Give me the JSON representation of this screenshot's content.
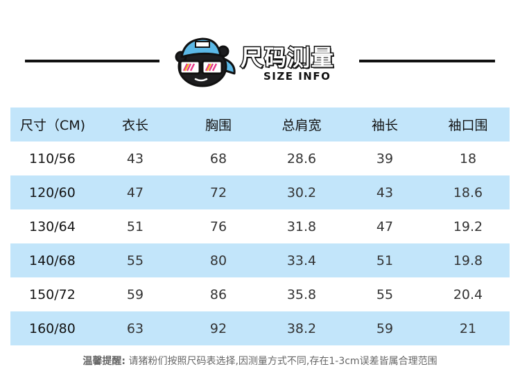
{
  "header": {
    "title_cn": "尺码测量",
    "title_en": "SIZE INFO",
    "mascot_icon": "cartoon-kid-cap-sunglasses-icon",
    "colors": {
      "rule": "#111111",
      "cap": "#5bb8e6",
      "row_blue": "#c2e5fa"
    }
  },
  "table": {
    "headers": [
      "尺寸（CM)",
      "衣长",
      "胸围",
      "总肩宽",
      "袖长",
      "袖口围"
    ],
    "rows": [
      [
        "110/56",
        "43",
        "68",
        "28.6",
        "39",
        "18"
      ],
      [
        "120/60",
        "47",
        "72",
        "30.2",
        "43",
        "18.6"
      ],
      [
        "130/64",
        "51",
        "76",
        "31.8",
        "47",
        "19.2"
      ],
      [
        "140/68",
        "55",
        "80",
        "33.4",
        "51",
        "19.8"
      ],
      [
        "150/72",
        "59",
        "86",
        "35.8",
        "55",
        "20.4"
      ],
      [
        "160/80",
        "63",
        "92",
        "38.2",
        "59",
        "21"
      ]
    ]
  },
  "note": {
    "label": "温馨提醒:",
    "text": " 请猪粉们按照尺码表选择,因测量方式不同,存在1-3cm误差皆属合理范围"
  }
}
